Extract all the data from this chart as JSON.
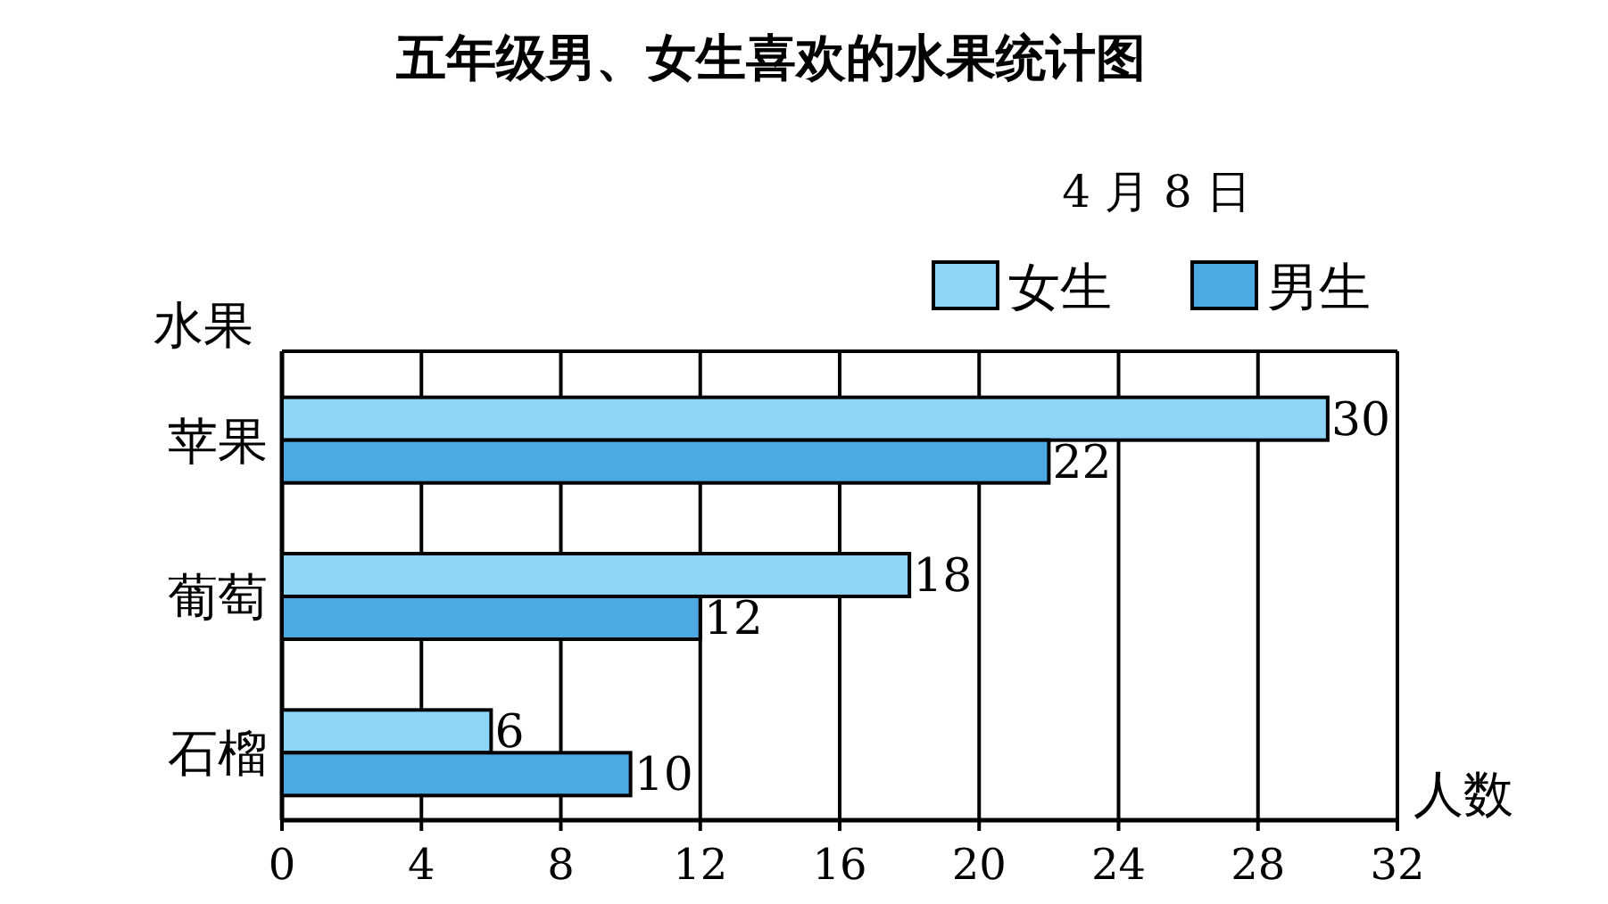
{
  "chart_data": {
    "type": "bar",
    "orientation": "horizontal",
    "title": "五年级男、女生喜欢的水果统计图",
    "subtitle": "4 月 8 日",
    "ylabel": "水果",
    "xlabel": "人数",
    "categories": [
      "苹果",
      "葡萄",
      "石榴"
    ],
    "series": [
      {
        "name": "女生",
        "color": "#8ed4f5",
        "values": [
          30,
          18,
          6
        ]
      },
      {
        "name": "男生",
        "color": "#4da9e2",
        "values": [
          22,
          12,
          10
        ]
      }
    ],
    "xlim": [
      0,
      32
    ],
    "xticks": [
      0,
      4,
      8,
      12,
      16,
      20,
      24,
      28,
      32
    ],
    "grid": "x",
    "legend": "top right",
    "data_labels": true
  }
}
